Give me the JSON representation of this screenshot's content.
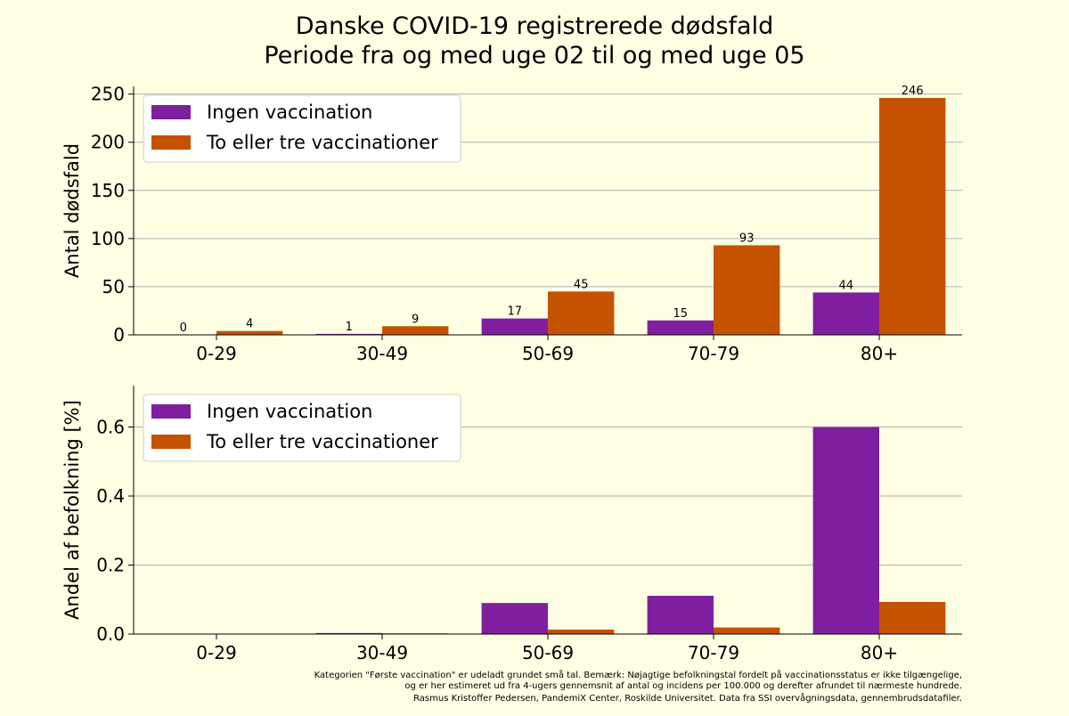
{
  "title_line1": "Danske COVID-19 registrerede dødsfald",
  "title_line2": "Periode fra og med uge 02 til og med uge 05",
  "footnote": [
    "Kategorien \"Første vaccination\" er udeladt grundet små tal. Bemærk: Nøjagtige befolkningstal fordelt på vaccinationsstatus er ikke tilgængelige,",
    "og er her estimeret ud fra 4-ugers gennemsnit af antal og incidens per 100.000 og derefter afrundet til nærmeste hundrede.",
    "Rasmus Kristoffer Pedersen, PandemiX Center, Roskilde Universitet. Data fra SSI overvågningsdata, gennembrudsdatafiler."
  ],
  "colors": {
    "background": "#ffffe4",
    "unvaccinated": "#7f1f9f",
    "vaccinated": "#c55200",
    "grid": "#b0b0b0"
  },
  "chart_data": [
    {
      "type": "bar",
      "categories": [
        "0-29",
        "30-49",
        "50-69",
        "70-79",
        "80+"
      ],
      "series": [
        {
          "name": "Ingen vaccination",
          "values": [
            0,
            1,
            17,
            15,
            44
          ],
          "color": "#7f1f9f"
        },
        {
          "name": "To eller tre vaccinationer",
          "values": [
            4,
            9,
            45,
            93,
            246
          ],
          "color": "#c55200"
        }
      ],
      "ylabel": "Antal dødsfald",
      "ylim": [
        0,
        258
      ],
      "yticks": [
        0,
        50,
        100,
        150,
        200,
        250
      ],
      "ytick_labels": [
        "0",
        "50",
        "100",
        "150",
        "200",
        "250"
      ],
      "data_labels": true,
      "grid": true,
      "legend": "top-left"
    },
    {
      "type": "bar",
      "categories": [
        "0-29",
        "30-49",
        "50-69",
        "70-79",
        "80+"
      ],
      "series": [
        {
          "name": "Ingen vaccination",
          "values": [
            0,
            0.003,
            0.09,
            0.111,
            0.6
          ],
          "color": "#7f1f9f"
        },
        {
          "name": "To eller tre vaccinationer",
          "values": [
            0,
            0.002,
            0.013,
            0.019,
            0.093
          ],
          "color": "#c55200"
        }
      ],
      "ylabel": "Andel af befolkning [%]",
      "ylim": [
        0,
        0.72
      ],
      "yticks": [
        0,
        0.2,
        0.4,
        0.6
      ],
      "ytick_labels": [
        "0.0",
        "0.2",
        "0.4",
        "0.6"
      ],
      "data_labels": false,
      "grid": true,
      "legend": "top-left"
    }
  ]
}
